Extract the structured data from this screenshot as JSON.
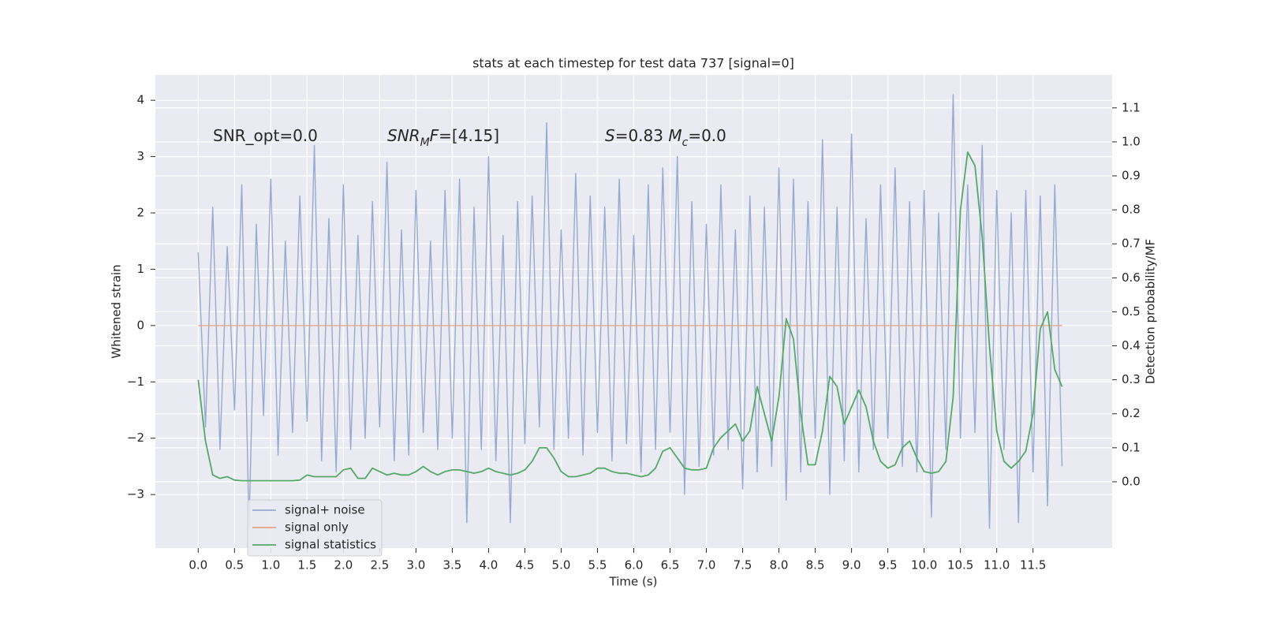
{
  "chart_data": {
    "type": "line",
    "title": "stats at each timestep for test data 737 [signal=0]",
    "xlabel": "Time (s)",
    "ylabel": "Whitened strain",
    "y2label": "Detection probability/MF",
    "annotations": [
      [
        {
          "text": "SNR_opt=0.0"
        }
      ],
      [
        {
          "text": "SNR",
          "italic": true
        },
        {
          "text": "M",
          "italic": true,
          "sub": true
        },
        {
          "text": "F",
          "italic": true
        },
        {
          "text": "=[4.15]"
        }
      ],
      [
        {
          "text": "S",
          "italic": true
        },
        {
          "text": "=0.83   "
        },
        {
          "text": "M",
          "italic": true
        },
        {
          "text": "c",
          "italic": true,
          "sub": true
        },
        {
          "text": "=0.0"
        }
      ]
    ],
    "grid": true,
    "legend": "lower left",
    "xlim": [
      -0.59,
      12.59
    ],
    "ylim": [
      -3.95,
      4.45
    ],
    "y2lim": [
      -0.195,
      1.197
    ],
    "xticks": [
      {
        "value": 0,
        "label": "0.0"
      },
      {
        "value": 0.5,
        "label": "0.5"
      },
      {
        "value": 1,
        "label": "1.0"
      },
      {
        "value": 1.5,
        "label": "1.5"
      },
      {
        "value": 2,
        "label": "2.0"
      },
      {
        "value": 2.5,
        "label": "2.5"
      },
      {
        "value": 3,
        "label": "3.0"
      },
      {
        "value": 3.5,
        "label": "3.5"
      },
      {
        "value": 4,
        "label": "4.0"
      },
      {
        "value": 4.5,
        "label": "4.5"
      },
      {
        "value": 5,
        "label": "5.0"
      },
      {
        "value": 5.5,
        "label": "5.5"
      },
      {
        "value": 6,
        "label": "6.0"
      },
      {
        "value": 6.5,
        "label": "6.5"
      },
      {
        "value": 7,
        "label": "7.0"
      },
      {
        "value": 7.5,
        "label": "7.5"
      },
      {
        "value": 8,
        "label": "8.0"
      },
      {
        "value": 8.5,
        "label": "8.5"
      },
      {
        "value": 9,
        "label": "9.0"
      },
      {
        "value": 9.5,
        "label": "9.5"
      },
      {
        "value": 10,
        "label": "10.0"
      },
      {
        "value": 10.5,
        "label": "10.5"
      },
      {
        "value": 11,
        "label": "11.0"
      },
      {
        "value": 11.5,
        "label": "11.5"
      }
    ],
    "yticks": [
      {
        "value": -3,
        "label": "−3"
      },
      {
        "value": -2,
        "label": "−2"
      },
      {
        "value": -1,
        "label": "−1"
      },
      0,
      1,
      2,
      3,
      4
    ],
    "y2ticks": [
      {
        "value": 0,
        "label": "0.0"
      },
      0.1,
      0.2,
      0.3,
      0.4,
      0.5,
      0.6,
      0.7,
      0.8,
      0.9,
      {
        "value": 1,
        "label": "1.0"
      },
      1.1
    ],
    "x": [
      0,
      0.1,
      0.2,
      0.3,
      0.4,
      0.5,
      0.6,
      0.7,
      0.8,
      0.9,
      1,
      1.1,
      1.2,
      1.3,
      1.4,
      1.5,
      1.6,
      1.7,
      1.8,
      1.9,
      2,
      2.1,
      2.2,
      2.3,
      2.4,
      2.5,
      2.6,
      2.7,
      2.8,
      2.9,
      3,
      3.1,
      3.2,
      3.3,
      3.4,
      3.5,
      3.6,
      3.7,
      3.8,
      3.9,
      4,
      4.1,
      4.2,
      4.3,
      4.4,
      4.5,
      4.6,
      4.7,
      4.8,
      4.9,
      5,
      5.1,
      5.2,
      5.3,
      5.4,
      5.5,
      5.6,
      5.7,
      5.8,
      5.9,
      6,
      6.1,
      6.2,
      6.3,
      6.4,
      6.5,
      6.6,
      6.7,
      6.8,
      6.9,
      7,
      7.1,
      7.2,
      7.3,
      7.4,
      7.5,
      7.6,
      7.7,
      7.8,
      7.9,
      8,
      8.1,
      8.2,
      8.3,
      8.4,
      8.5,
      8.6,
      8.7,
      8.8,
      8.9,
      9,
      9.1,
      9.2,
      9.3,
      9.4,
      9.5,
      9.6,
      9.7,
      9.8,
      9.9,
      10,
      10.1,
      10.2,
      10.3,
      10.4,
      10.5,
      10.6,
      10.7,
      10.8,
      10.9,
      11,
      11.1,
      11.2,
      11.3,
      11.4,
      11.5,
      11.6,
      11.7,
      11.8,
      11.9
    ],
    "series": [
      {
        "name": "signal+ noise",
        "color": "#97a9d0",
        "width": 1.4,
        "values": [
          1.3,
          -1.8,
          2.1,
          -2.2,
          1.4,
          -1.5,
          2.5,
          -3.6,
          1.8,
          -1.6,
          2.6,
          -2.3,
          1.5,
          -1.9,
          2.3,
          -1.7,
          3.2,
          -2.4,
          1.9,
          -2.6,
          2.5,
          -2.2,
          1.6,
          -2.0,
          2.2,
          -1.8,
          2.9,
          -2.4,
          1.7,
          -2.3,
          2.4,
          -1.9,
          1.5,
          -2.2,
          2.4,
          -2.0,
          2.6,
          -3.5,
          2.1,
          -2.2,
          3.0,
          -2.4,
          1.6,
          -3.5,
          2.2,
          -2.1,
          2.3,
          -1.8,
          3.6,
          -2.2,
          1.7,
          -2.0,
          2.7,
          -2.3,
          2.3,
          -1.9,
          2.1,
          -2.4,
          2.6,
          -2.1,
          1.6,
          -2.6,
          2.5,
          -2.2,
          2.8,
          -1.9,
          3.0,
          -3.0,
          2.2,
          -2.5,
          1.8,
          -2.3,
          2.5,
          -2.2,
          1.7,
          -2.9,
          2.3,
          -2.6,
          2.1,
          -2.5,
          2.8,
          -3.1,
          2.6,
          -2.6,
          2.2,
          -2.0,
          3.3,
          -3.0,
          2.1,
          -2.4,
          3.4,
          -2.6,
          1.9,
          -2.2,
          2.5,
          -2.0,
          2.8,
          -2.5,
          2.2,
          -2.6,
          2.4,
          -3.4,
          2.0,
          -2.2,
          4.1,
          -2.0,
          2.5,
          -1.9,
          3.2,
          -3.6,
          2.4,
          -2.2,
          2.0,
          -3.5,
          2.4,
          -2.6,
          2.3,
          -3.2,
          2.5,
          -2.5
        ]
      },
      {
        "name": "signal only",
        "color": "#e5a283",
        "width": 1.2,
        "values": [
          0,
          0,
          0,
          0,
          0,
          0,
          0,
          0,
          0,
          0,
          0,
          0,
          0,
          0,
          0,
          0,
          0,
          0,
          0,
          0,
          0,
          0,
          0,
          0,
          0,
          0,
          0,
          0,
          0,
          0,
          0,
          0,
          0,
          0,
          0,
          0,
          0,
          0,
          0,
          0,
          0,
          0,
          0,
          0,
          0,
          0,
          0,
          0,
          0,
          0,
          0,
          0,
          0,
          0,
          0,
          0,
          0,
          0,
          0,
          0,
          0,
          0,
          0,
          0,
          0,
          0,
          0,
          0,
          0,
          0,
          0,
          0,
          0,
          0,
          0,
          0,
          0,
          0,
          0,
          0,
          0,
          0,
          0,
          0,
          0,
          0,
          0,
          0,
          0,
          0,
          0,
          0,
          0,
          0,
          0,
          0,
          0,
          0,
          0,
          0,
          0,
          0,
          0,
          0,
          0,
          0,
          0,
          0,
          0,
          0,
          0,
          0,
          0,
          0,
          0,
          0,
          0,
          0,
          0,
          0
        ]
      },
      {
        "name": "signal statistics",
        "color": "#55a868",
        "width": 1.8,
        "axis": "y2",
        "values": [
          0.3,
          0.12,
          0.02,
          0.01,
          0.015,
          0.005,
          0.003,
          0.003,
          0.003,
          0.003,
          0.003,
          0.003,
          0.003,
          0.003,
          0.005,
          0.02,
          0.015,
          0.015,
          0.015,
          0.015,
          0.035,
          0.04,
          0.01,
          0.01,
          0.04,
          0.03,
          0.02,
          0.025,
          0.02,
          0.02,
          0.03,
          0.045,
          0.03,
          0.02,
          0.03,
          0.035,
          0.035,
          0.03,
          0.025,
          0.03,
          0.04,
          0.03,
          0.025,
          0.02,
          0.025,
          0.035,
          0.06,
          0.1,
          0.1,
          0.07,
          0.03,
          0.015,
          0.015,
          0.02,
          0.025,
          0.04,
          0.04,
          0.03,
          0.025,
          0.025,
          0.02,
          0.015,
          0.02,
          0.04,
          0.09,
          0.1,
          0.07,
          0.04,
          0.035,
          0.035,
          0.04,
          0.1,
          0.13,
          0.15,
          0.17,
          0.12,
          0.15,
          0.28,
          0.2,
          0.12,
          0.25,
          0.48,
          0.42,
          0.2,
          0.05,
          0.05,
          0.15,
          0.31,
          0.28,
          0.17,
          0.22,
          0.27,
          0.22,
          0.12,
          0.06,
          0.04,
          0.05,
          0.1,
          0.12,
          0.07,
          0.03,
          0.025,
          0.03,
          0.06,
          0.25,
          0.8,
          0.97,
          0.93,
          0.72,
          0.4,
          0.15,
          0.06,
          0.04,
          0.06,
          0.09,
          0.2,
          0.45,
          0.5,
          0.33,
          0.28
        ]
      }
    ]
  }
}
